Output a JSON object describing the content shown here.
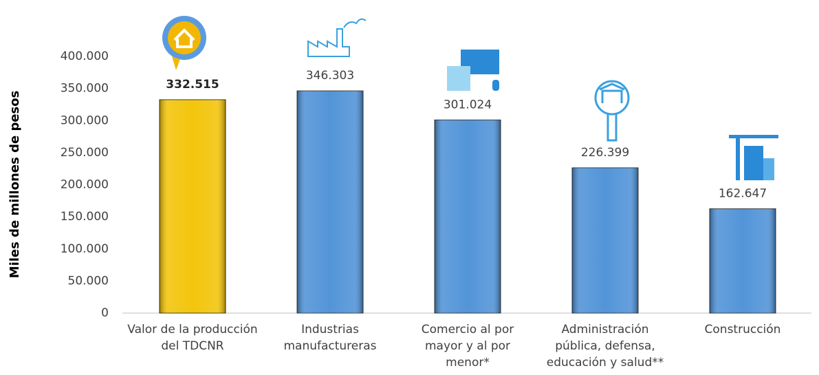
{
  "chart_data": {
    "type": "bar",
    "y_axis_label": "Miles de millones de pesos",
    "categories": [
      "Valor de la producción del TDCNR",
      "Industrias manufactureras",
      "Comercio al por mayor y al por menor*",
      "Administración pública, defensa, educación y salud**",
      "Construcción"
    ],
    "values": [
      332515,
      346303,
      301024,
      226399,
      162647
    ],
    "value_labels": [
      "332.515",
      "346.303",
      "301.024",
      "226.399",
      "162.647"
    ],
    "colors": [
      "#f2c200",
      "#4a8fd6",
      "#4a8fd6",
      "#4a8fd6",
      "#4a8fd6"
    ],
    "ylim": [
      0,
      400000
    ],
    "yticks": [
      0,
      {
        "value": 50000,
        "label": "50.000"
      },
      {
        "value": 100000,
        "label": "100.000"
      },
      {
        "value": 150000,
        "label": "150.000"
      },
      {
        "value": 200000,
        "label": "200.000"
      },
      {
        "value": 250000,
        "label": "250.000"
      },
      {
        "value": 300000,
        "label": "300.000"
      },
      {
        "value": 350000,
        "label": "350.000"
      },
      {
        "value": 400000,
        "label": "400.000"
      }
    ],
    "grid": false
  }
}
